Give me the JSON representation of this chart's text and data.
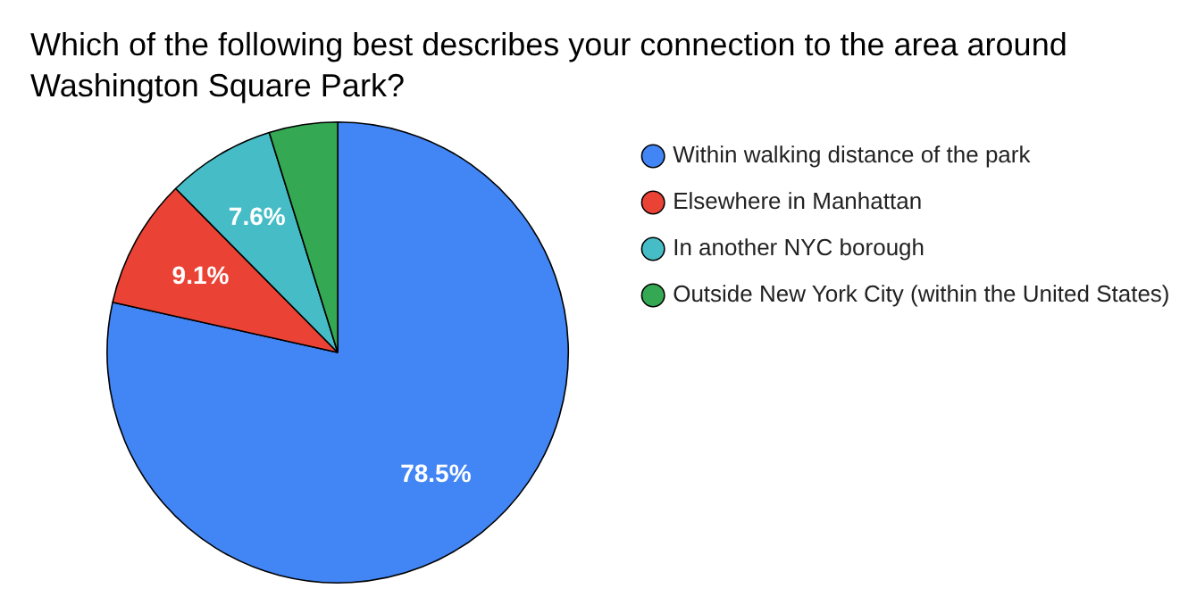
{
  "chart_data": {
    "type": "pie",
    "title": "Which of the following best describes your connection to the area around Washington Square Park?",
    "categories": [
      "Within walking distance of the park",
      "Elsewhere in Manhattan",
      "In another NYC borough",
      "Outside New York City (within the United States)"
    ],
    "values": [
      78.5,
      9.1,
      7.6,
      4.8
    ],
    "value_labels": [
      "78.5%",
      "9.1%",
      "7.6%",
      null
    ],
    "colors": [
      "#4285f4",
      "#ea4335",
      "#46bdc6",
      "#34a853"
    ],
    "legend": "right"
  }
}
